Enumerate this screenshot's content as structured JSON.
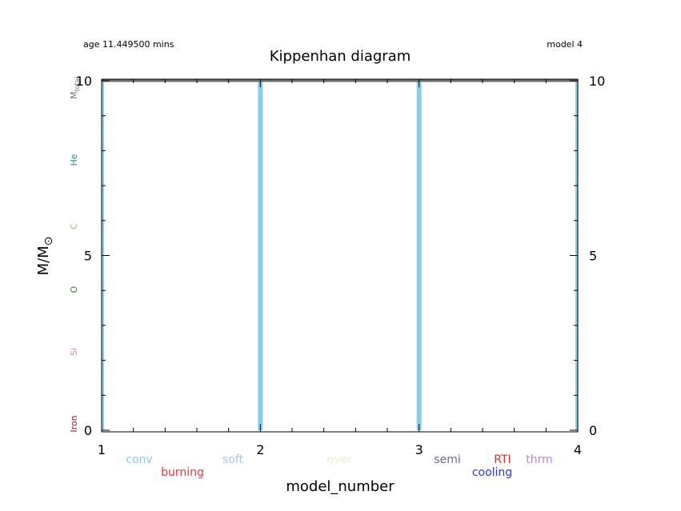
{
  "header": {
    "age": "age 11.449500 mins",
    "model": "model 4"
  },
  "chart_data": {
    "type": "bar",
    "title": "Kippenhan diagram",
    "xlabel": "model_number",
    "ylabel": "M/M",
    "ylabel_symbol": "⊙",
    "xlim": [
      1,
      4
    ],
    "ylim": [
      0,
      10
    ],
    "x_ticks": [
      "1",
      "2",
      "3",
      "4"
    ],
    "y_ticks": [
      "0",
      "5",
      "10"
    ],
    "series": [
      {
        "name": "conv",
        "x": [
          1,
          2,
          3,
          4
        ],
        "y_bottom": [
          0,
          0,
          0,
          0
        ],
        "y_top": [
          10,
          10,
          10,
          10
        ],
        "color": "#87ceeb"
      }
    ],
    "total_mass_line": {
      "label": "M",
      "sub": "total",
      "value": 10,
      "color": "#707070"
    },
    "abundance_labels": [
      {
        "label": "He",
        "color": "#2e8b8b"
      },
      {
        "label": "C",
        "color": "#90c878"
      },
      {
        "label": "O",
        "color": "#2e7d32"
      },
      {
        "label": "Si",
        "color": "#d48cc8"
      },
      {
        "label": "Iron",
        "color": "#a0102a"
      }
    ],
    "legend": [
      {
        "label": "conv",
        "color": "#87ceeb"
      },
      {
        "label": "burning",
        "color": "#e8383a"
      },
      {
        "label": "soft",
        "color": "#a8c8e0"
      },
      {
        "label": "over",
        "color": "#f0ead0"
      },
      {
        "label": "semi",
        "color": "#6a7080"
      },
      {
        "label": "cooling",
        "color": "#2838d8"
      },
      {
        "label": "RTI",
        "color": "#d83030"
      },
      {
        "label": "thrm",
        "color": "#c080e8"
      }
    ]
  }
}
